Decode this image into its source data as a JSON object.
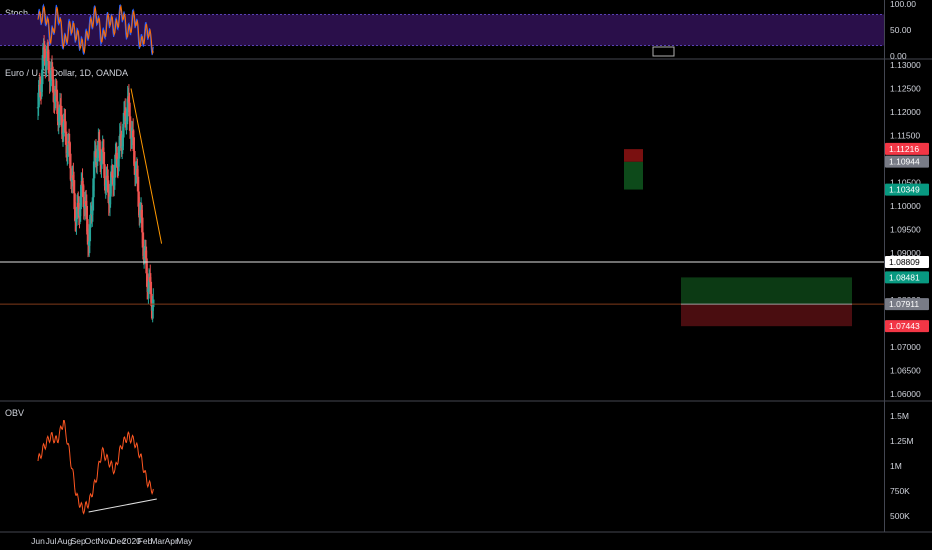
{
  "stoch_pane": {
    "label": "Stoch",
    "ticks": [
      "100.00",
      "50.00",
      "0.00"
    ],
    "tick_values": [
      100,
      50,
      0
    ],
    "band": [
      20,
      80
    ]
  },
  "price_pane": {
    "label": "Euro / U.S. Dollar, 1D, OANDA",
    "ticks": [
      "1.13000",
      "1.12500",
      "1.12000",
      "1.11500",
      "1.11000",
      "1.10500",
      "1.10000",
      "1.09500",
      "1.09000",
      "1.08500",
      "1.08000",
      "1.07500",
      "1.07000",
      "1.06500",
      "1.06000"
    ],
    "tick_values": [
      1.13,
      1.125,
      1.12,
      1.115,
      1.11,
      1.105,
      1.1,
      1.095,
      1.09,
      1.085,
      1.08,
      1.075,
      1.07,
      1.065,
      1.06
    ],
    "badges": [
      {
        "value": 1.11216,
        "label": "1.11216",
        "bg": "#f23645",
        "fg": "#ffffff"
      },
      {
        "value": 1.10944,
        "label": "1.10944",
        "bg": "#787b86",
        "fg": "#ffffff"
      },
      {
        "value": 1.10349,
        "label": "1.10349",
        "bg": "#089981",
        "fg": "#ffffff"
      },
      {
        "value": 1.08809,
        "label": "1.08809",
        "bg": "#ffffff",
        "fg": "#000000"
      },
      {
        "value": 1.08481,
        "label": "1.08481",
        "bg": "#089981",
        "fg": "#ffffff"
      },
      {
        "value": 1.07911,
        "label": "1.07911",
        "bg": "#787b86",
        "fg": "#ffffff"
      },
      {
        "value": 1.07443,
        "label": "1.07443",
        "bg": "#f23645",
        "fg": "#ffffff"
      }
    ]
  },
  "obv_pane": {
    "label": "OBV",
    "ticks": [
      "1.5M",
      "1.25M",
      "1M",
      "750K",
      "500K"
    ],
    "tick_values": [
      1500000,
      1250000,
      1000000,
      750000,
      500000
    ]
  },
  "time_axis": {
    "labels": [
      "Jun",
      "Jul",
      "Aug",
      "Sep",
      "Oct",
      "Nov",
      "Dec",
      "2020",
      "Feb",
      "Mar",
      "Apr",
      "May"
    ],
    "dates": [
      "2019-06-01",
      "2019-07-01",
      "2019-08-01",
      "2019-09-01",
      "2019-10-01",
      "2019-11-01",
      "2019-12-01",
      "2020-01-01",
      "2020-02-01",
      "2020-03-01",
      "2020-04-01",
      "2020-05-01"
    ]
  },
  "colors": {
    "up": "#26a69a",
    "down": "#ef5350",
    "stoch_bg": "#2a0f4a",
    "stoch_k": "#2962ff",
    "stoch_d": "#ff6d00",
    "obv_line": "#ff5722",
    "trendline": "#ff9800",
    "support": "#e0e0e0"
  },
  "chart_data": {
    "type": "candlestick",
    "x": [
      "2019-06-01",
      "2019-06-15",
      "2019-07-01",
      "2019-07-15",
      "2019-08-01",
      "2019-08-15",
      "2019-09-01",
      "2019-09-15",
      "2019-10-01",
      "2019-10-15",
      "2019-11-01",
      "2019-11-15",
      "2019-12-01",
      "2019-12-15",
      "2020-01-01",
      "2020-01-15",
      "2020-02-01",
      "2020-02-10",
      "2020-02-20"
    ],
    "close": [
      1.121,
      1.133,
      1.128,
      1.121,
      1.117,
      1.11,
      1.097,
      1.104,
      1.092,
      1.112,
      1.111,
      1.102,
      1.108,
      1.114,
      1.122,
      1.111,
      1.098,
      1.085,
      1.079
    ],
    "last_price": 1.07911,
    "support_level": 1.08809,
    "trendline": {
      "from": [
        "2019-12-31",
        1.125
      ],
      "to": [
        "2020-03-10",
        1.092
      ]
    },
    "long_position": {
      "entry": 1.07911,
      "target": 1.08481,
      "stop": 1.07443
    },
    "stoch_k": [
      70,
      85,
      30,
      90,
      20,
      60,
      40,
      15,
      55,
      85,
      30,
      75,
      50,
      90,
      40,
      80,
      20,
      55,
      10
    ],
    "obv": [
      1050000,
      1200000,
      1300000,
      1250000,
      1450000,
      1100000,
      700000,
      560000,
      640000,
      850000,
      1150000,
      1050000,
      950000,
      1200000,
      1300000,
      1250000,
      1100000,
      850000,
      750000
    ],
    "obv_trendline": {
      "from": [
        "2019-09-25",
        540000
      ],
      "to": [
        "2020-02-28",
        670000
      ]
    }
  }
}
